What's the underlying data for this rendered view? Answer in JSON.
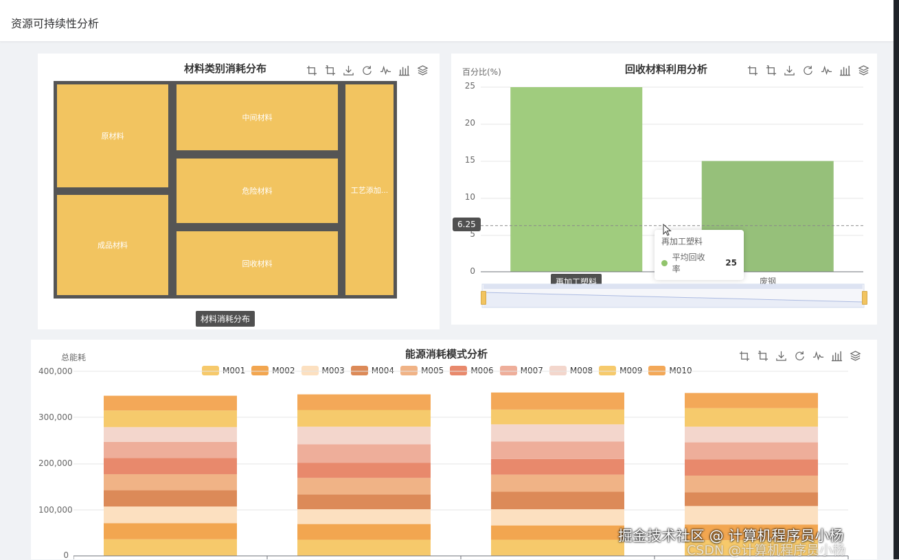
{
  "page": {
    "title": "资源可持续性分析"
  },
  "treemap": {
    "title": "材料类别消耗分布",
    "breadcrumb": "材料消耗分布",
    "toolbox": [
      "crop-icon",
      "crop-reset-icon",
      "download-icon",
      "refresh-icon",
      "line-chart-icon",
      "bar-chart-icon",
      "stack-icon"
    ],
    "fill_color": "#f2c460",
    "border_color": "#555555"
  },
  "recycle": {
    "title": "回收材料利用分析",
    "y_axis_name": "百分比(%)",
    "y_ticks": [
      "0",
      "5",
      "10",
      "15",
      "20",
      "25"
    ],
    "x_labels": [
      "再加工塑料",
      "废钢"
    ],
    "mark_line_label": "6.25",
    "tooltip": {
      "category": "再加工塑料",
      "series": "平均回收率",
      "value": "25"
    },
    "bar_colors": [
      "#a0cc7e",
      "#96c07a"
    ]
  },
  "energy": {
    "title": "能源消耗模式分析",
    "y_axis_name": "总能耗",
    "y_ticks": [
      "0",
      "100,000",
      "200,000",
      "300,000",
      "400,000"
    ],
    "legend": [
      {
        "name": "M001",
        "color": "#f6c96b"
      },
      {
        "name": "M002",
        "color": "#f2a650"
      },
      {
        "name": "M003",
        "color": "#fce0c0"
      },
      {
        "name": "M004",
        "color": "#dc8a58"
      },
      {
        "name": "M005",
        "color": "#f0b386"
      },
      {
        "name": "M006",
        "color": "#e8896c"
      },
      {
        "name": "M007",
        "color": "#eeae9a"
      },
      {
        "name": "M008",
        "color": "#f3d6cc"
      },
      {
        "name": "M009",
        "color": "#f6ca6c"
      },
      {
        "name": "M010",
        "color": "#f3a858"
      }
    ]
  },
  "watermark": {
    "line1": "掘金技术社区 @ 计算机程序员小杨",
    "line2": "CSDN @计算机程序员小杨"
  },
  "chart_data": [
    {
      "type": "treemap",
      "title": "材料类别消耗分布",
      "categories": [
        "原材料",
        "成品材料",
        "中间材料",
        "危险材料",
        "回收材料",
        "工艺添加..."
      ]
    },
    {
      "type": "bar",
      "title": "回收材料利用分析",
      "categories": [
        "再加工塑料",
        "废钢"
      ],
      "series": [
        {
          "name": "平均回收率",
          "values": [
            25,
            15
          ]
        }
      ],
      "ylabel": "百分比(%)",
      "ylim": [
        0,
        25
      ],
      "mark_line": 6.25,
      "grid": true
    },
    {
      "type": "bar",
      "title": "能源消耗模式分析",
      "stacked": true,
      "ylabel": "总能耗",
      "ylim": [
        0,
        400000
      ],
      "legend_position": "top",
      "grid": true,
      "series": [
        {
          "name": "M001",
          "values": [
            36000,
            35000,
            35000,
            34000
          ]
        },
        {
          "name": "M002",
          "values": [
            35000,
            34000,
            31000,
            34000
          ]
        },
        {
          "name": "M003",
          "values": [
            36000,
            32000,
            35000,
            40000
          ]
        },
        {
          "name": "M004",
          "values": [
            35000,
            32000,
            38000,
            30000
          ]
        },
        {
          "name": "M005",
          "values": [
            35000,
            36000,
            37000,
            36000
          ]
        },
        {
          "name": "M006",
          "values": [
            35000,
            33000,
            34000,
            35000
          ]
        },
        {
          "name": "M007",
          "values": [
            35000,
            40000,
            38000,
            37000
          ]
        },
        {
          "name": "M008",
          "values": [
            32000,
            38000,
            37000,
            34000
          ]
        },
        {
          "name": "M009",
          "values": [
            36000,
            36000,
            32000,
            40000
          ]
        },
        {
          "name": "M010",
          "values": [
            32000,
            34000,
            37000,
            33000
          ]
        }
      ]
    }
  ]
}
